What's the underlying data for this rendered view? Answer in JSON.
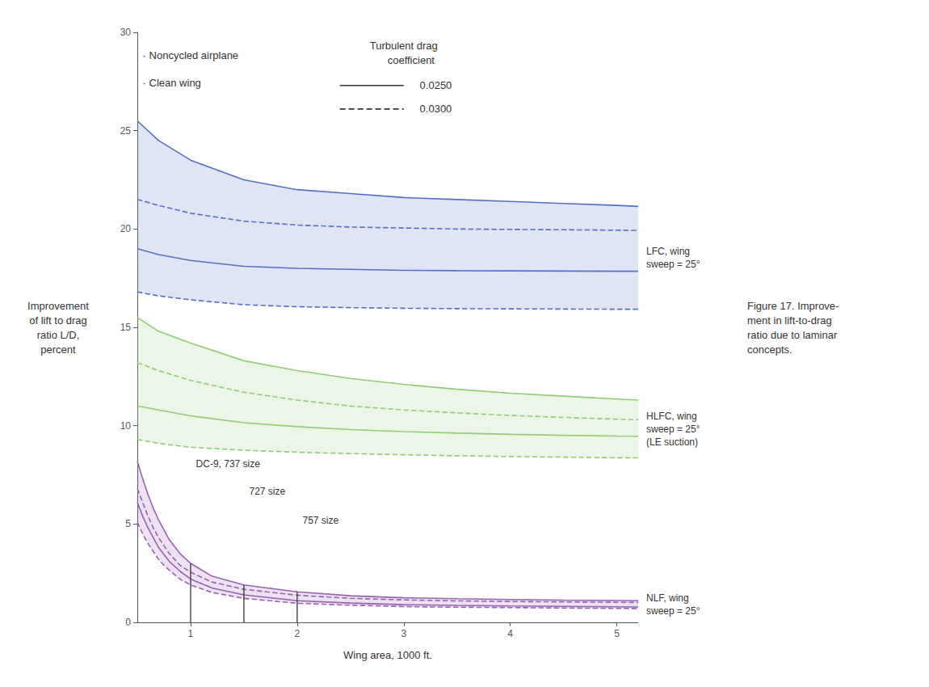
{
  "chart_data": {
    "type": "line",
    "xlabel": "Wing area, 1000 ft.",
    "ylabel": "Improvement\nof lift to drag\nratio L/D,\npercent",
    "xlim": [
      0.5,
      5.2
    ],
    "ylim": [
      0,
      30
    ],
    "xticks": [
      1,
      2,
      3,
      4,
      5
    ],
    "yticks": [
      0,
      5,
      10,
      15,
      20,
      25,
      30
    ],
    "grid": false,
    "annotations": [
      "· Noncycled airplane",
      "· Clean wing"
    ],
    "legend_title": "Turbulent drag\n     coefficient",
    "legend_entries": [
      {
        "label": "0.0250",
        "line_style": "solid",
        "color": "#333333"
      },
      {
        "label": "0.0300",
        "line_style": "dashed",
        "color": "#333333"
      }
    ],
    "bands": [
      {
        "label": "LFC, wing\nsweep = 25°",
        "color": "#5470c6",
        "series": [
          {
            "line_style": "solid",
            "x": [
              0.5,
              0.7,
              1.0,
              1.5,
              2.0,
              2.5,
              3.0,
              3.5,
              4.0,
              4.5,
              5.0,
              5.2
            ],
            "values": [
              25.5,
              24.5,
              23.5,
              22.5,
              22.0,
              21.8,
              21.6,
              21.5,
              21.4,
              21.3,
              21.2,
              21.15
            ]
          },
          {
            "line_style": "dashed",
            "x": [
              0.5,
              0.7,
              1.0,
              1.5,
              2.0,
              2.5,
              3.0,
              3.5,
              4.0,
              4.5,
              5.0,
              5.2
            ],
            "values": [
              21.5,
              21.2,
              20.8,
              20.4,
              20.2,
              20.1,
              20.05,
              20.0,
              19.98,
              19.96,
              19.94,
              19.93
            ]
          },
          {
            "line_style": "solid",
            "x": [
              0.5,
              0.7,
              1.0,
              1.5,
              2.0,
              2.5,
              3.0,
              3.5,
              4.0,
              4.5,
              5.0,
              5.2
            ],
            "values": [
              19.0,
              18.7,
              18.4,
              18.1,
              18.0,
              17.95,
              17.9,
              17.88,
              17.87,
              17.86,
              17.85,
              17.85
            ]
          },
          {
            "line_style": "dashed",
            "x": [
              0.5,
              0.7,
              1.0,
              1.5,
              2.0,
              2.5,
              3.0,
              3.5,
              4.0,
              4.5,
              5.0,
              5.2
            ],
            "values": [
              16.8,
              16.6,
              16.4,
              16.15,
              16.05,
              16.0,
              15.97,
              15.95,
              15.94,
              15.93,
              15.92,
              15.92
            ]
          }
        ]
      },
      {
        "label": "HLFC, wing\nsweep = 25°\n(LE suction)",
        "color": "#91cc75",
        "series": [
          {
            "line_style": "solid",
            "x": [
              0.5,
              0.7,
              1.0,
              1.5,
              2.0,
              2.5,
              3.0,
              3.5,
              4.0,
              4.5,
              5.0,
              5.2
            ],
            "values": [
              15.5,
              14.8,
              14.2,
              13.3,
              12.8,
              12.4,
              12.1,
              11.85,
              11.65,
              11.5,
              11.35,
              11.3
            ]
          },
          {
            "line_style": "dashed",
            "x": [
              0.5,
              0.7,
              1.0,
              1.5,
              2.0,
              2.5,
              3.0,
              3.5,
              4.0,
              4.5,
              5.0,
              5.2
            ],
            "values": [
              13.2,
              12.8,
              12.3,
              11.7,
              11.3,
              11.0,
              10.8,
              10.65,
              10.52,
              10.42,
              10.33,
              10.3
            ]
          },
          {
            "line_style": "solid",
            "x": [
              0.5,
              0.7,
              1.0,
              1.5,
              2.0,
              2.5,
              3.0,
              3.5,
              4.0,
              4.5,
              5.0,
              5.2
            ],
            "values": [
              11.0,
              10.8,
              10.5,
              10.15,
              9.95,
              9.8,
              9.7,
              9.62,
              9.56,
              9.51,
              9.47,
              9.46
            ]
          },
          {
            "line_style": "dashed",
            "x": [
              0.5,
              0.7,
              1.0,
              1.5,
              2.0,
              2.5,
              3.0,
              3.5,
              4.0,
              4.5,
              5.0,
              5.2
            ],
            "values": [
              9.3,
              9.1,
              8.9,
              8.75,
              8.65,
              8.58,
              8.52,
              8.47,
              8.43,
              8.4,
              8.37,
              8.36
            ]
          }
        ]
      },
      {
        "label": "NLF, wing\nsweep = 25°",
        "color": "#9a60b4",
        "series": [
          {
            "line_style": "solid",
            "x": [
              0.5,
              0.55,
              0.6,
              0.65,
              0.7,
              0.75,
              0.8,
              0.9,
              1.0,
              1.2,
              1.5,
              2.0,
              2.5,
              3.0,
              3.5,
              4.0,
              4.5,
              5.0,
              5.2
            ],
            "values": [
              8.2,
              7.3,
              6.5,
              5.8,
              5.2,
              4.7,
              4.2,
              3.5,
              3.0,
              2.35,
              1.9,
              1.55,
              1.35,
              1.25,
              1.2,
              1.16,
              1.13,
              1.11,
              1.1
            ]
          },
          {
            "line_style": "dashed",
            "x": [
              0.5,
              0.55,
              0.6,
              0.65,
              0.7,
              0.75,
              0.8,
              0.9,
              1.0,
              1.2,
              1.5,
              2.0,
              2.5,
              3.0,
              3.5,
              4.0,
              4.5,
              5.0,
              5.2
            ],
            "values": [
              6.8,
              6.1,
              5.4,
              4.8,
              4.3,
              3.9,
              3.5,
              2.9,
              2.55,
              2.05,
              1.68,
              1.38,
              1.22,
              1.14,
              1.09,
              1.06,
              1.04,
              1.02,
              1.01
            ]
          },
          {
            "line_style": "solid",
            "x": [
              0.5,
              0.55,
              0.6,
              0.65,
              0.7,
              0.75,
              0.8,
              0.9,
              1.0,
              1.2,
              1.5,
              2.0,
              2.5,
              3.0,
              3.5,
              4.0,
              4.5,
              5.0,
              5.2
            ],
            "values": [
              6.1,
              5.4,
              4.8,
              4.3,
              3.8,
              3.45,
              3.1,
              2.6,
              2.2,
              1.75,
              1.4,
              1.1,
              0.98,
              0.9,
              0.86,
              0.83,
              0.81,
              0.79,
              0.78
            ]
          },
          {
            "line_style": "dashed",
            "x": [
              0.5,
              0.55,
              0.6,
              0.65,
              0.7,
              0.75,
              0.8,
              0.9,
              1.0,
              1.2,
              1.5,
              2.0,
              2.5,
              3.0,
              3.5,
              4.0,
              4.5,
              5.0,
              5.2
            ],
            "values": [
              5.1,
              4.5,
              4.0,
              3.6,
              3.2,
              2.9,
              2.65,
              2.2,
              1.9,
              1.52,
              1.22,
              0.97,
              0.87,
              0.8,
              0.77,
              0.75,
              0.73,
              0.71,
              0.7
            ]
          }
        ]
      }
    ],
    "reference_lines": [
      {
        "x": 1.0,
        "label": "DC-9, 737 size",
        "color": "#333333"
      },
      {
        "x": 1.5,
        "label": "727 size",
        "color": "#333333"
      },
      {
        "x": 2.0,
        "label": "757 size",
        "color": "#333333"
      }
    ],
    "caption": "Figure 17. Improve-\nment in lift-to-drag\nratio due to laminar\nconcepts."
  }
}
